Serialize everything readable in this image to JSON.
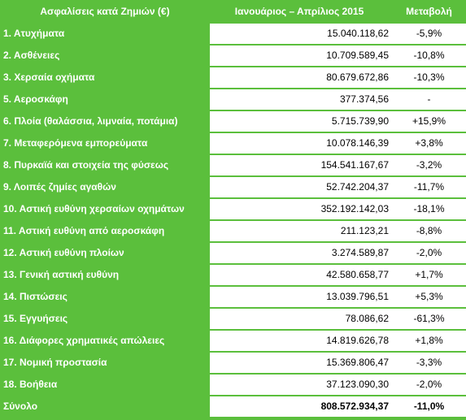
{
  "header": {
    "col1": "Ασφαλίσεις κατά Ζημιών (€)",
    "col2": "Ιανουάριος – Απρίλιος 2015",
    "col3": "Μεταβολή"
  },
  "rows": [
    {
      "label": "1. Ατυχήματα",
      "value": "15.040.118,62",
      "change": "-5,9%"
    },
    {
      "label": "2. Ασθένειες",
      "value": "10.709.589,45",
      "change": "-10,8%"
    },
    {
      "label": "3. Χερσαία οχήματα",
      "value": "80.679.672,86",
      "change": "-10,3%"
    },
    {
      "label": "5. Αεροσκάφη",
      "value": "377.374,56",
      "change": "-"
    },
    {
      "label": "6. Πλοία (θαλάσσια, λιμναία, ποτάμια)",
      "value": "5.715.739,90",
      "change": "+15,9%"
    },
    {
      "label": "7. Μεταφερόμενα εμπορεύματα",
      "value": "10.078.146,39",
      "change": "+3,8%"
    },
    {
      "label": "8. Πυρκαϊά και στοιχεία της φύσεως",
      "value": "154.541.167,67",
      "change": "-3,2%"
    },
    {
      "label": "9. Λοιπές ζημίες αγαθών",
      "value": "52.742.204,37",
      "change": "-11,7%"
    },
    {
      "label": "10. Αστική ευθύνη χερσαίων οχημάτων",
      "value": "352.192.142,03",
      "change": "-18,1%"
    },
    {
      "label": "11. Αστική ευθύνη από αεροσκάφη",
      "value": "211.123,21",
      "change": "-8,8%"
    },
    {
      "label": "12. Αστική ευθύνη πλοίων",
      "value": "3.274.589,87",
      "change": "-2,0%"
    },
    {
      "label": "13. Γενική αστική ευθύνη",
      "value": "42.580.658,77",
      "change": "+1,7%"
    },
    {
      "label": "14. Πιστώσεις",
      "value": "13.039.796,51",
      "change": "+5,3%"
    },
    {
      "label": "15. Εγγυήσεις",
      "value": "78.086,62",
      "change": "-61,3%"
    },
    {
      "label": "16. Διάφορες χρηματικές απώλειες",
      "value": "14.819.626,78",
      "change": "+1,8%"
    },
    {
      "label": "17. Νομική προστασία",
      "value": "15.369.806,47",
      "change": "-3,3%"
    },
    {
      "label": "18. Βοήθεια",
      "value": "37.123.090,30",
      "change": "-2,0%"
    }
  ],
  "total": {
    "label": "Σύνολο",
    "value": "808.572.934,37",
    "change": "-11,0%"
  },
  "colors": {
    "green": "#5bbf3c",
    "white": "#ffffff",
    "text": "#000000"
  }
}
